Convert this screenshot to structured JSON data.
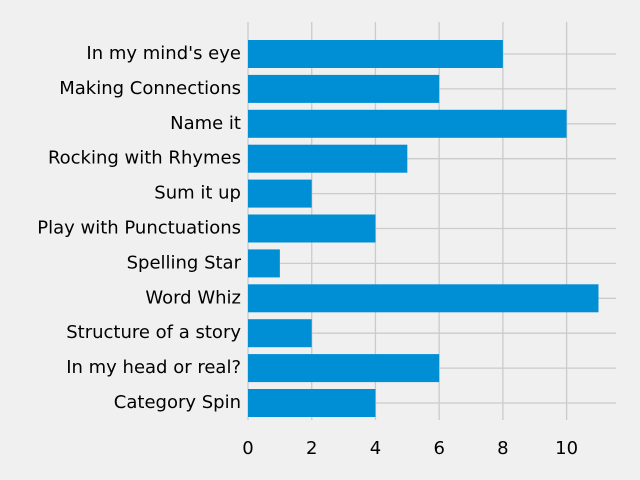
{
  "chart_data": {
    "type": "bar",
    "orientation": "horizontal",
    "categories": [
      "In my mind's eye",
      "Making Connections",
      "Name it",
      "Rocking with Rhymes",
      "Sum it up",
      "Play with Punctuations",
      "Spelling Star",
      "Word Whiz",
      "Structure of a story",
      "In my head or real?",
      "Category Spin"
    ],
    "values": [
      8,
      6,
      10,
      5,
      2,
      4,
      1,
      11,
      2,
      6,
      4
    ],
    "x_ticks": [
      0,
      2,
      4,
      6,
      8,
      10
    ],
    "xlim": [
      0,
      11.55
    ],
    "title": "",
    "xlabel": "",
    "ylabel": "",
    "grid": true,
    "colors": {
      "bar": "#008fd5",
      "background": "#f0f0f0",
      "grid": "#cbcbcb"
    }
  }
}
